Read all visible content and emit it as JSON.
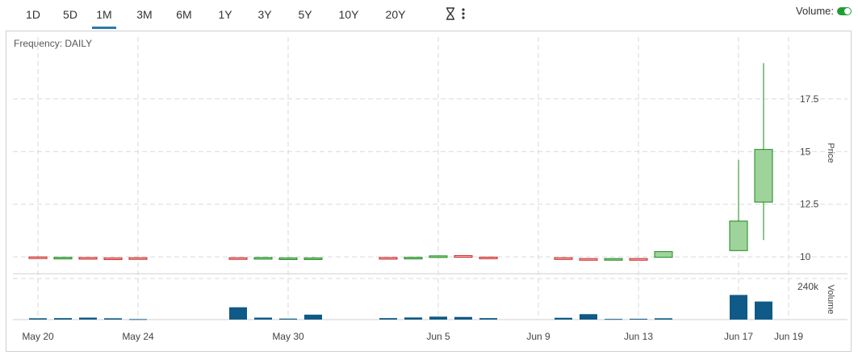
{
  "toolbar": {
    "ranges": [
      "1D",
      "5D",
      "1M",
      "3M",
      "6M",
      "1Y",
      "3Y",
      "5Y",
      "10Y",
      "20Y"
    ],
    "active_range": "1M",
    "icons": [
      "hourglass-icon",
      "more-vertical-icon"
    ],
    "volume_toggle_label": "Volume:",
    "volume_toggle_on": true,
    "accent_color": "#2a7ab0",
    "toggle_color": "#1f9d35"
  },
  "chart_data": {
    "type": "candlestick",
    "frequency_label": "Frequency: DAILY",
    "price_axis_label": "Price",
    "volume_axis_label": "Volume",
    "price_ticks": [
      10,
      12.5,
      15,
      17.5
    ],
    "price_tick_labels": [
      "10",
      "12.5",
      "15",
      "17.5"
    ],
    "price_range": [
      9.7,
      19.9
    ],
    "volume_ticks_labels": [
      "240k"
    ],
    "volume_range": [
      0,
      250000
    ],
    "x_tick_labels": [
      "May 20",
      "May 24",
      "May 30",
      "Jun 5",
      "Jun 9",
      "Jun 13",
      "Jun 17",
      "Jun 19"
    ],
    "x_tick_dates": [
      "2024-05-20",
      "2024-05-24",
      "2024-05-30",
      "2024-06-05",
      "2024-06-09",
      "2024-06-13",
      "2024-06-17",
      "2024-06-19"
    ],
    "colors": {
      "up_fill": "#9fd39c",
      "up_stroke": "#1a8a1a",
      "down_fill": "#f4c6c6",
      "down_stroke": "#cc1f1f",
      "volume": "#0f5a87",
      "grid": "#d9d9d9"
    },
    "candles": [
      {
        "date": "2024-05-20",
        "open": 10.0,
        "high": 10.02,
        "low": 9.94,
        "close": 9.96,
        "volume": 8000
      },
      {
        "date": "2024-05-21",
        "open": 9.97,
        "high": 9.99,
        "low": 9.95,
        "close": 9.98,
        "volume": 9000
      },
      {
        "date": "2024-05-22",
        "open": 9.97,
        "high": 9.98,
        "low": 9.92,
        "close": 9.94,
        "volume": 12000
      },
      {
        "date": "2024-05-23",
        "open": 9.95,
        "high": 9.97,
        "low": 9.9,
        "close": 9.93,
        "volume": 8000
      },
      {
        "date": "2024-05-24",
        "open": 9.96,
        "high": 9.98,
        "low": 9.94,
        "close": 9.95,
        "volume": 3000
      },
      {
        "date": "2024-05-28",
        "open": 9.96,
        "high": 9.97,
        "low": 9.91,
        "close": 9.93,
        "volume": 75000
      },
      {
        "date": "2024-05-29",
        "open": 9.93,
        "high": 9.99,
        "low": 9.92,
        "close": 9.97,
        "volume": 12000
      },
      {
        "date": "2024-05-30",
        "open": 9.94,
        "high": 9.98,
        "low": 9.92,
        "close": 9.95,
        "volume": 6000
      },
      {
        "date": "2024-05-31",
        "open": 9.94,
        "high": 9.98,
        "low": 9.92,
        "close": 9.95,
        "volume": 30000
      },
      {
        "date": "2024-06-03",
        "open": 9.97,
        "high": 9.98,
        "low": 9.92,
        "close": 9.93,
        "volume": 9000
      },
      {
        "date": "2024-06-04",
        "open": 9.96,
        "high": 9.99,
        "low": 9.95,
        "close": 9.98,
        "volume": 13000
      },
      {
        "date": "2024-06-05",
        "open": 9.98,
        "high": 10.07,
        "low": 9.97,
        "close": 10.05,
        "volume": 18000
      },
      {
        "date": "2024-06-06",
        "open": 10.06,
        "high": 10.08,
        "low": 9.97,
        "close": 9.99,
        "volume": 16000
      },
      {
        "date": "2024-06-07",
        "open": 9.99,
        "high": 10.01,
        "low": 9.95,
        "close": 9.96,
        "volume": 9000
      },
      {
        "date": "2024-06-10",
        "open": 9.96,
        "high": 9.98,
        "low": 9.86,
        "close": 9.88,
        "volume": 11000
      },
      {
        "date": "2024-06-11",
        "open": 9.92,
        "high": 9.94,
        "low": 9.9,
        "close": 9.91,
        "volume": 33000
      },
      {
        "date": "2024-06-12",
        "open": 9.91,
        "high": 9.93,
        "low": 9.89,
        "close": 9.92,
        "volume": 4000
      },
      {
        "date": "2024-06-13",
        "open": 9.92,
        "high": 9.94,
        "low": 9.86,
        "close": 9.89,
        "volume": 5000
      },
      {
        "date": "2024-06-14",
        "open": 9.98,
        "high": 10.26,
        "low": 9.97,
        "close": 10.25,
        "volume": 8000
      },
      {
        "date": "2024-06-17",
        "open": 10.3,
        "high": 14.6,
        "low": 10.3,
        "close": 11.7,
        "volume": 150000
      },
      {
        "date": "2024-06-18",
        "open": 12.6,
        "high": 19.2,
        "low": 10.8,
        "close": 15.1,
        "volume": 110000
      }
    ]
  }
}
